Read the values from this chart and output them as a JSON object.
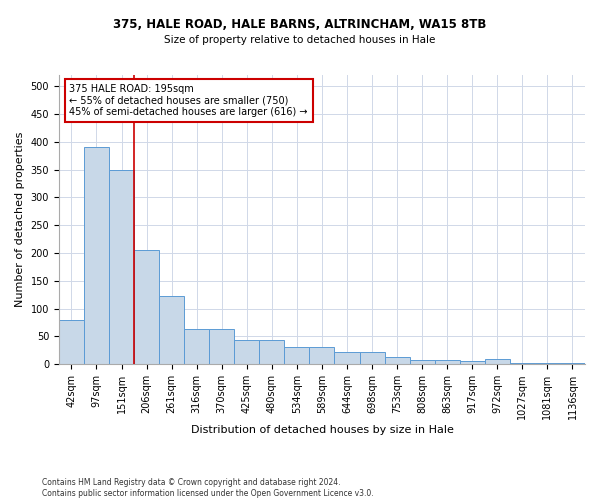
{
  "title1": "375, HALE ROAD, HALE BARNS, ALTRINCHAM, WA15 8TB",
  "title2": "Size of property relative to detached houses in Hale",
  "xlabel": "Distribution of detached houses by size in Hale",
  "ylabel": "Number of detached properties",
  "categories": [
    "42sqm",
    "97sqm",
    "151sqm",
    "206sqm",
    "261sqm",
    "316sqm",
    "370sqm",
    "425sqm",
    "480sqm",
    "534sqm",
    "589sqm",
    "644sqm",
    "698sqm",
    "753sqm",
    "808sqm",
    "863sqm",
    "917sqm",
    "972sqm",
    "1027sqm",
    "1081sqm",
    "1136sqm"
  ],
  "values": [
    80,
    390,
    350,
    205,
    122,
    63,
    63,
    43,
    43,
    31,
    31,
    22,
    22,
    13,
    7,
    7,
    6,
    10,
    3,
    2,
    2
  ],
  "bar_color": "#c8d8e8",
  "bar_edge_color": "#5b9bd5",
  "vline_x_index": 2,
  "vline_color": "#cc0000",
  "annotation_text": "375 HALE ROAD: 195sqm\n← 55% of detached houses are smaller (750)\n45% of semi-detached houses are larger (616) →",
  "annotation_box_color": "#ffffff",
  "annotation_box_edge_color": "#cc0000",
  "ylim": [
    0,
    520
  ],
  "yticks": [
    0,
    50,
    100,
    150,
    200,
    250,
    300,
    350,
    400,
    450,
    500
  ],
  "footnote": "Contains HM Land Registry data © Crown copyright and database right 2024.\nContains public sector information licensed under the Open Government Licence v3.0.",
  "bg_color": "#ffffff",
  "grid_color": "#d0d8e8",
  "title1_fontsize": 8.5,
  "title2_fontsize": 7.5,
  "xlabel_fontsize": 8,
  "ylabel_fontsize": 8,
  "tick_fontsize": 7,
  "ann_fontsize": 7,
  "footnote_fontsize": 5.5
}
